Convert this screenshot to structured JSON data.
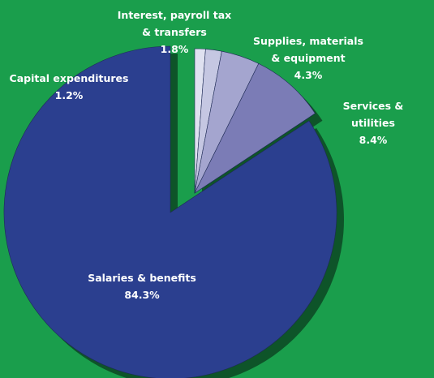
{
  "chart_data": {
    "type": "pie",
    "categories": [
      "Capital expenditures",
      "Interest, payroll tax\n& transfers",
      "Supplies, materials\n& equipment",
      "Services & utilities",
      "Salaries & benefits"
    ],
    "values": [
      1.2,
      1.8,
      4.3,
      8.4,
      84.3
    ],
    "value_labels": [
      "1.2%",
      "1.8%",
      "4.3%",
      "8.4%",
      "84.3%"
    ],
    "colors": [
      "#dfe1f0",
      "#c5c7e2",
      "#a4a5cf",
      "#7b7cb6",
      "#2b3f8f"
    ]
  }
}
